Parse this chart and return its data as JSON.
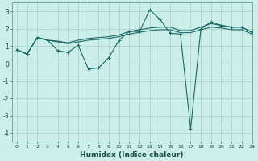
{
  "xlabel": "Humidex (Indice chaleur)",
  "background_color": "#cceee8",
  "grid_color": "#aad4cc",
  "line_color": "#1a6868",
  "xlim": [
    -0.5,
    23
  ],
  "ylim": [
    -4.5,
    3.5
  ],
  "yticks": [
    -4,
    -3,
    -2,
    -1,
    0,
    1,
    2,
    3
  ],
  "xticks": [
    0,
    1,
    2,
    3,
    4,
    5,
    6,
    7,
    8,
    9,
    10,
    11,
    12,
    13,
    14,
    15,
    16,
    17,
    18,
    19,
    20,
    21,
    22,
    23
  ],
  "series1_x": [
    0,
    1,
    2,
    3,
    4,
    5,
    6,
    7,
    8,
    9,
    10,
    11,
    12,
    13,
    14,
    15,
    16,
    17,
    18,
    19,
    20,
    21,
    22,
    23
  ],
  "series1_y": [
    0.8,
    0.55,
    1.5,
    1.35,
    0.75,
    0.65,
    1.05,
    -0.3,
    -0.25,
    0.35,
    1.35,
    1.85,
    1.85,
    3.1,
    2.55,
    1.75,
    1.7,
    -3.75,
    2.0,
    2.4,
    2.2,
    2.1,
    2.1,
    1.8
  ],
  "series2_x": [
    0,
    1,
    2,
    3,
    4,
    5,
    6,
    7,
    8,
    9,
    10,
    11,
    12,
    13,
    14,
    15,
    16,
    17,
    18,
    19,
    20,
    21,
    22,
    23
  ],
  "series2_y": [
    0.8,
    0.55,
    1.5,
    1.35,
    1.3,
    1.2,
    1.35,
    1.45,
    1.5,
    1.55,
    1.65,
    1.85,
    1.95,
    2.05,
    2.1,
    2.1,
    1.9,
    1.9,
    2.1,
    2.3,
    2.2,
    2.1,
    2.1,
    1.8
  ],
  "series3_x": [
    0,
    1,
    2,
    3,
    4,
    5,
    6,
    7,
    8,
    9,
    10,
    11,
    12,
    13,
    14,
    15,
    16,
    17,
    18,
    19,
    20,
    21,
    22,
    23
  ],
  "series3_y": [
    0.8,
    0.55,
    1.5,
    1.35,
    1.25,
    1.15,
    1.25,
    1.35,
    1.4,
    1.45,
    1.55,
    1.7,
    1.8,
    1.9,
    1.95,
    1.95,
    1.78,
    1.78,
    1.95,
    2.1,
    2.05,
    1.95,
    1.95,
    1.7
  ]
}
